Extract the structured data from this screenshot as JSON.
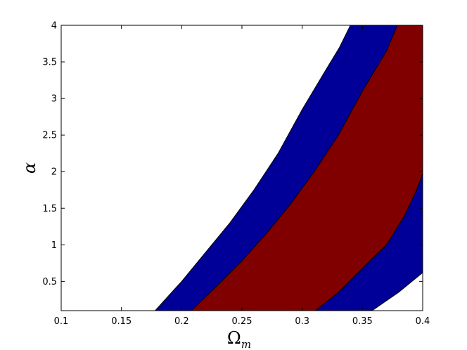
{
  "chart_data": {
    "type": "area",
    "title": "",
    "xlabel": "Ω",
    "xlabel_sub": "m",
    "ylabel": "α",
    "xlim": [
      0.1,
      0.4
    ],
    "ylim": [
      0.1,
      4
    ],
    "xticks": [
      0.1,
      0.15,
      0.2,
      0.25,
      0.3,
      0.35,
      0.4
    ],
    "xtick_labels": [
      "0.1",
      "0.15",
      "0.2",
      "0.25",
      "0.3",
      "0.35",
      "0.4"
    ],
    "yticks": [
      0.5,
      1,
      1.5,
      2,
      2.5,
      3,
      3.5,
      4
    ],
    "ytick_labels": [
      "0.5",
      "1",
      "1.5",
      "2",
      "2.5",
      "3",
      "3.5",
      "4"
    ],
    "grid": false,
    "legend": "none",
    "series": [
      {
        "fill": "#000099",
        "left_boundary": [
          [
            0.178,
            0.1
          ],
          [
            0.2,
            0.5
          ],
          [
            0.22,
            0.9
          ],
          [
            0.24,
            1.3
          ],
          [
            0.26,
            1.75
          ],
          [
            0.28,
            2.25
          ],
          [
            0.3,
            2.85
          ],
          [
            0.32,
            3.4
          ],
          [
            0.331,
            3.7
          ],
          [
            0.34,
            4.0
          ]
        ],
        "right_boundary": [
          [
            0.358,
            0.1
          ],
          [
            0.38,
            0.35
          ],
          [
            0.4,
            0.62
          ]
        ]
      },
      {
        "fill": "#800000",
        "left_boundary": [
          [
            0.208,
            0.1
          ],
          [
            0.23,
            0.45
          ],
          [
            0.25,
            0.78
          ],
          [
            0.27,
            1.15
          ],
          [
            0.29,
            1.55
          ],
          [
            0.31,
            2.0
          ],
          [
            0.33,
            2.5
          ],
          [
            0.35,
            3.1
          ],
          [
            0.37,
            3.65
          ],
          [
            0.379,
            4.0
          ]
        ],
        "right_boundary": [
          [
            0.311,
            0.1
          ],
          [
            0.33,
            0.35
          ],
          [
            0.35,
            0.68
          ],
          [
            0.37,
            1.0
          ],
          [
            0.385,
            1.4
          ],
          [
            0.395,
            1.75
          ],
          [
            0.4,
            1.98
          ]
        ]
      }
    ]
  }
}
